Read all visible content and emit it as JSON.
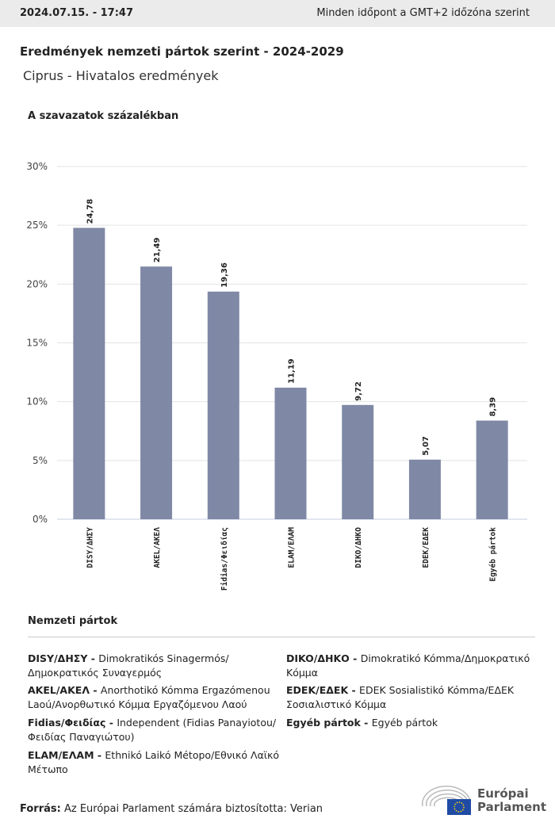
{
  "header": {
    "timestamp": "2024.07.15. - 17:47",
    "timezone_note": "Minden időpont a GMT+2 időzóna szerint"
  },
  "title": "Eredmények nemzeti pártok szerint - 2024-2029",
  "subtitle": "Ciprus - Hivatalos eredmények",
  "chart_data": {
    "type": "bar",
    "ylabel": "A szavazatok százalékban",
    "categories": [
      "DISY/ΔΗΣΥ",
      "AKEL/ΑΚΕΛ",
      "Fidias/Φειδίας",
      "ELAM/ΕΛΑΜ",
      "DIKO/ΔΗΚΟ",
      "EDEK/ΕΔΕΚ",
      "Egyéb pártok"
    ],
    "values": [
      24.78,
      21.49,
      19.36,
      11.19,
      9.72,
      5.07,
      8.39
    ],
    "data_labels": [
      "24,78",
      "21,49",
      "19,36",
      "11,19",
      "9,72",
      "5,07",
      "8,39"
    ],
    "ylim": [
      0,
      30
    ],
    "yticks": [
      "0%",
      "5%",
      "10%",
      "15%",
      "20%",
      "25%",
      "30%"
    ],
    "grid": true,
    "bar_color": "#7f89a6"
  },
  "legend": {
    "title": "Nemzeti pártok",
    "items": [
      {
        "abbr": "DISY/ΔΗΣΥ",
        "name": "Dimokratikós Sinagermós/ Δημοκρατικός Συναγερμός"
      },
      {
        "abbr": "AKEL/ΑΚΕΛ",
        "name": "Anorthotikó Kómma Ergazómenou Laoú/Ανορθωτικό Κόμμα Εργαζόμενου Λαού"
      },
      {
        "abbr": "Fidias/Φειδίας",
        "name": "Independent (Fidias Panayiotou/ Φειδίας Παναγιώτου)"
      },
      {
        "abbr": "ELAM/ΕΛΑΜ",
        "name": "Ethnikó Laikó Métopo/Εθνικό Λαϊκό Μέτωπο"
      },
      {
        "abbr": "DIKO/ΔΗΚΟ",
        "name": "Dimokratikó Kómma/Δημοκρατικό Κόμμα"
      },
      {
        "abbr": "EDEK/ΕΔΕΚ",
        "name": "EDEK Sosialistikó Kómma/ΕΔΕΚ Σοσιαλιστικό Κόμμα"
      },
      {
        "abbr": "Egyéb pártok",
        "name": "Egyéb pártok"
      }
    ]
  },
  "source": {
    "label": "Forrás:",
    "text": "Az Európai Parlament számára biztosította: Verian"
  },
  "logo": {
    "line1": "Európai",
    "line2": "Parlament"
  }
}
